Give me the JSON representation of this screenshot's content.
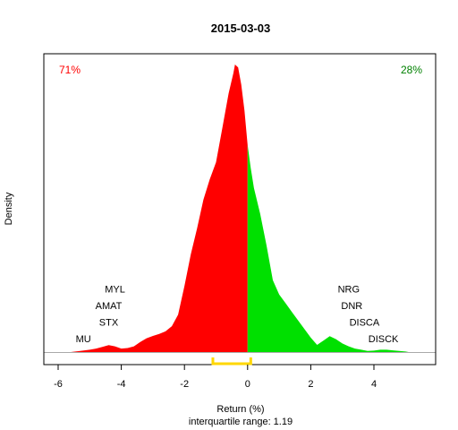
{
  "chart_data": {
    "type": "area",
    "title": "2015-03-03",
    "xlabel": "Return (%)",
    "ylabel": "Density",
    "subtitle": "interquartile range: 1.19",
    "xlim": [
      -6.3,
      5.5
    ],
    "ylim": [
      0,
      1
    ],
    "xticks": [
      -6,
      -4,
      -2,
      0,
      2,
      4
    ],
    "split_at": 0,
    "left_pct_label": "71%",
    "right_pct_label": "28%",
    "colors": {
      "negative": "#ff0000",
      "positive": "#00e000",
      "iqr": "#ffd700",
      "left_pct": "#ff0000",
      "right_pct": "#008000"
    },
    "iqr_range": [
      -1.1,
      0.1
    ],
    "density": [
      [
        -5.6,
        0
      ],
      [
        -5.3,
        0.004
      ],
      [
        -5.0,
        0.008
      ],
      [
        -4.8,
        0.012
      ],
      [
        -4.6,
        0.018
      ],
      [
        -4.4,
        0.024
      ],
      [
        -4.2,
        0.02
      ],
      [
        -4.0,
        0.012
      ],
      [
        -3.8,
        0.014
      ],
      [
        -3.6,
        0.02
      ],
      [
        -3.4,
        0.035
      ],
      [
        -3.2,
        0.048
      ],
      [
        -3.0,
        0.056
      ],
      [
        -2.8,
        0.063
      ],
      [
        -2.6,
        0.072
      ],
      [
        -2.4,
        0.09
      ],
      [
        -2.2,
        0.13
      ],
      [
        -2.0,
        0.23
      ],
      [
        -1.8,
        0.34
      ],
      [
        -1.6,
        0.43
      ],
      [
        -1.4,
        0.53
      ],
      [
        -1.2,
        0.6
      ],
      [
        -1.0,
        0.66
      ],
      [
        -0.8,
        0.78
      ],
      [
        -0.6,
        0.9
      ],
      [
        -0.45,
        0.97
      ],
      [
        -0.4,
        1.0
      ],
      [
        -0.3,
        0.99
      ],
      [
        -0.2,
        0.93
      ],
      [
        -0.1,
        0.84
      ],
      [
        0.0,
        0.72
      ],
      [
        0.1,
        0.64
      ],
      [
        0.2,
        0.57
      ],
      [
        0.4,
        0.48
      ],
      [
        0.6,
        0.37
      ],
      [
        0.8,
        0.25
      ],
      [
        1.0,
        0.2
      ],
      [
        1.2,
        0.17
      ],
      [
        1.4,
        0.14
      ],
      [
        1.6,
        0.11
      ],
      [
        1.8,
        0.08
      ],
      [
        2.0,
        0.05
      ],
      [
        2.2,
        0.025
      ],
      [
        2.4,
        0.04
      ],
      [
        2.6,
        0.055
      ],
      [
        2.8,
        0.045
      ],
      [
        3.0,
        0.03
      ],
      [
        3.2,
        0.02
      ],
      [
        3.4,
        0.012
      ],
      [
        3.6,
        0.008
      ],
      [
        3.8,
        0.004
      ],
      [
        4.0,
        0.005
      ],
      [
        4.2,
        0.008
      ],
      [
        4.4,
        0.008
      ],
      [
        4.6,
        0.006
      ],
      [
        4.8,
        0.004
      ],
      [
        5.0,
        0.002
      ],
      [
        5.1,
        0
      ]
    ],
    "annotations": [
      {
        "text": "MYL",
        "x": -4.2,
        "row": 4
      },
      {
        "text": "AMAT",
        "x": -4.4,
        "row": 3
      },
      {
        "text": "STX",
        "x": -4.4,
        "row": 2
      },
      {
        "text": "MU",
        "x": -5.2,
        "row": 1
      },
      {
        "text": "NRG",
        "x": 3.2,
        "row": 4
      },
      {
        "text": "DNR",
        "x": 3.3,
        "row": 3
      },
      {
        "text": "DISCA",
        "x": 3.7,
        "row": 2
      },
      {
        "text": "DISCK",
        "x": 4.3,
        "row": 1
      }
    ]
  }
}
